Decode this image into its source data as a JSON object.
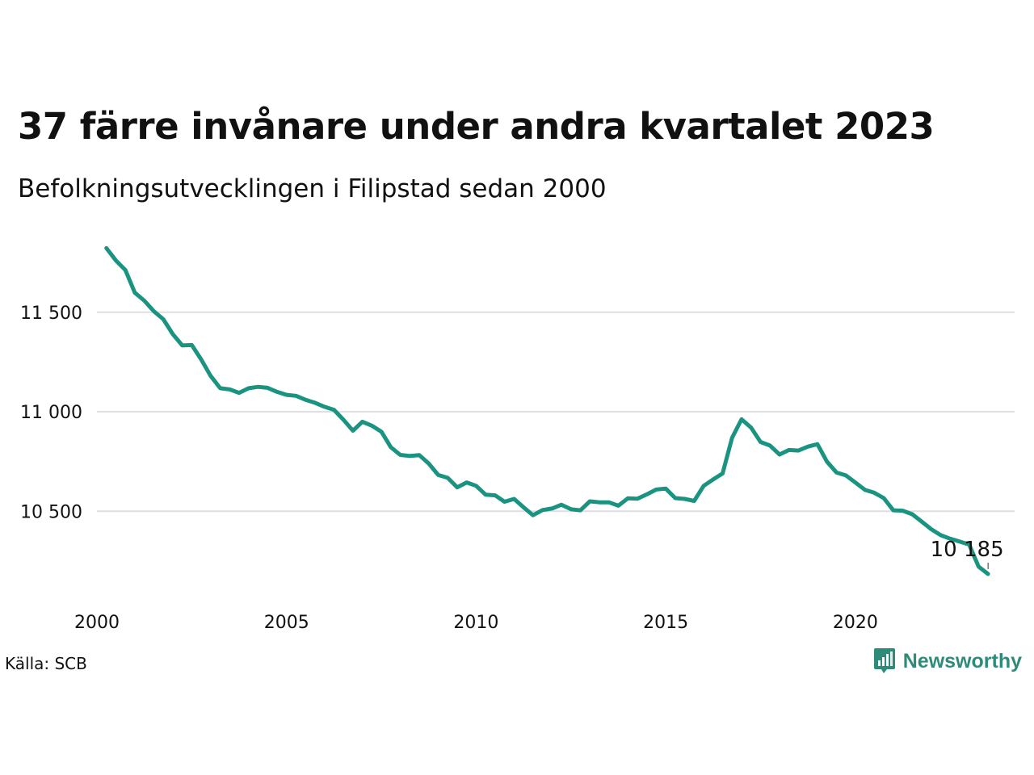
{
  "header": {
    "title": "37 färre invånare under andra kvartalet 2023",
    "subtitle": "Befolkningsutvecklingen i Filipstad sedan 2000"
  },
  "footer": {
    "source": "Källa: SCB",
    "brand": "Newsworthy",
    "brand_icon": "newsworthy-chart-bubble-icon"
  },
  "colors": {
    "line": "#1a9480",
    "grid": "#dedee3",
    "brand": "#2e8b7a"
  },
  "chart_data": {
    "type": "line",
    "grid": "horizontal",
    "xlim": [
      2000,
      2024.2
    ],
    "ylim": [
      10120,
      11860
    ],
    "x_ticks": [
      {
        "value": 2000,
        "label": "2000"
      },
      {
        "value": 2005,
        "label": "2005"
      },
      {
        "value": 2010,
        "label": "2010"
      },
      {
        "value": 2015,
        "label": "2015"
      },
      {
        "value": 2020,
        "label": "2020"
      }
    ],
    "y_ticks": [
      {
        "value": 10500,
        "label": "10 500"
      },
      {
        "value": 11000,
        "label": "11 000"
      },
      {
        "value": 11500,
        "label": "11 500"
      }
    ],
    "series": [
      {
        "x": [
          2000.25,
          2000.5,
          2000.75,
          2001.0,
          2001.25,
          2001.5,
          2001.75,
          2002.0,
          2002.25,
          2002.5,
          2002.75,
          2003.0,
          2003.25,
          2003.5,
          2003.75,
          2004.0,
          2004.25,
          2004.5,
          2004.75,
          2005.0,
          2005.25,
          2005.5,
          2005.75,
          2006.0,
          2006.25,
          2006.5,
          2006.75,
          2007.0,
          2007.25,
          2007.5,
          2007.75,
          2008.0,
          2008.25,
          2008.5,
          2008.75,
          2009.0,
          2009.25,
          2009.5,
          2009.75,
          2010.0,
          2010.25,
          2010.5,
          2010.75,
          2011.0,
          2011.25,
          2011.5,
          2011.75,
          2012.0,
          2012.25,
          2012.5,
          2012.75,
          2013.0,
          2013.25,
          2013.5,
          2013.75,
          2014.0,
          2014.25,
          2014.5,
          2014.75,
          2015.0,
          2015.25,
          2015.5,
          2015.75,
          2016.0,
          2016.25,
          2016.5,
          2016.75,
          2017.0,
          2017.25,
          2017.5,
          2017.75,
          2018.0,
          2018.25,
          2018.5,
          2018.75,
          2019.0,
          2019.25,
          2019.5,
          2019.75,
          2020.0,
          2020.25,
          2020.5,
          2020.75,
          2021.0,
          2021.25,
          2021.5,
          2021.75,
          2022.0,
          2022.25,
          2022.5,
          2022.75,
          2023.0,
          2023.25,
          2023.5
        ],
        "y": [
          11822,
          11760,
          11712,
          11598,
          11558,
          11505,
          11465,
          11390,
          11333,
          11335,
          11262,
          11180,
          11118,
          11112,
          11095,
          11118,
          11125,
          11120,
          11100,
          11085,
          11080,
          11060,
          11045,
          11025,
          11010,
          10960,
          10905,
          10950,
          10930,
          10900,
          10822,
          10783,
          10778,
          10782,
          10740,
          10682,
          10668,
          10620,
          10645,
          10628,
          10583,
          10580,
          10548,
          10562,
          10520,
          10480,
          10506,
          10514,
          10533,
          10510,
          10505,
          10550,
          10545,
          10545,
          10528,
          10565,
          10563,
          10585,
          10609,
          10614,
          10566,
          10562,
          10552,
          10628,
          10660,
          10690,
          10870,
          10962,
          10920,
          10848,
          10830,
          10785,
          10808,
          10805,
          10825,
          10837,
          10750,
          10695,
          10680,
          10645,
          10608,
          10593,
          10566,
          10505,
          10503,
          10485,
          10448,
          10410,
          10380,
          10362,
          10348,
          10333,
          10222,
          10185
        ]
      }
    ],
    "annotations": [
      {
        "x": 2023.5,
        "y": 10185,
        "label": "10 185"
      }
    ]
  }
}
